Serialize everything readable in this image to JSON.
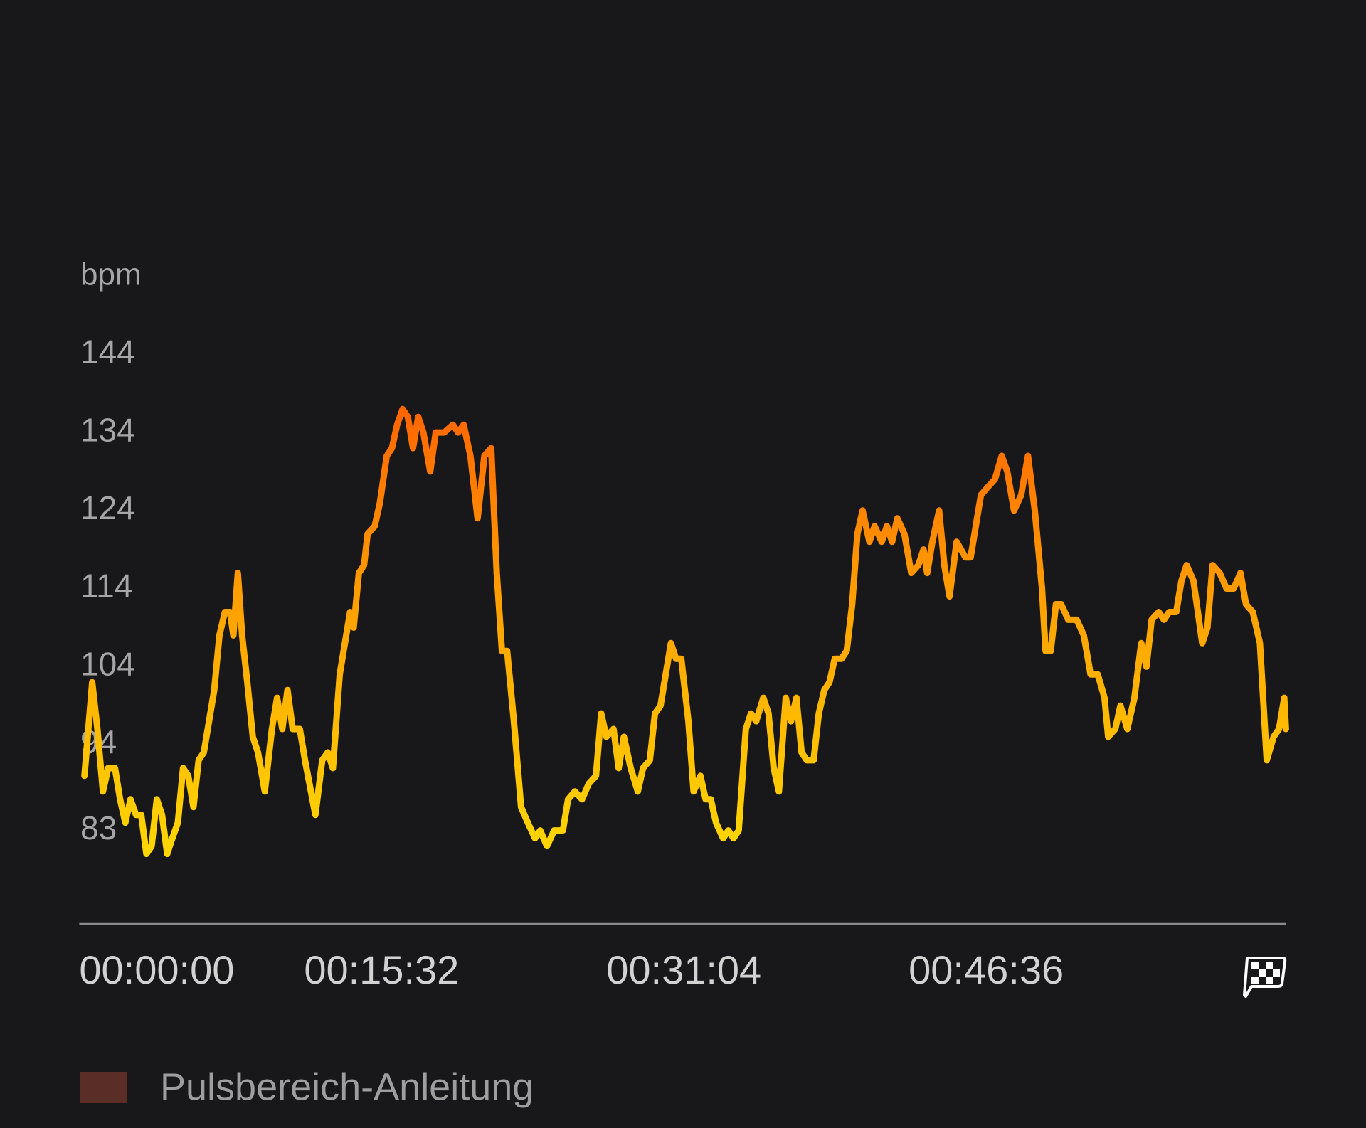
{
  "chart_data": {
    "type": "line",
    "y_label": "bpm",
    "x": [
      16,
      40,
      56,
      73,
      89,
      110,
      126,
      142,
      158,
      175,
      191,
      207,
      223,
      239,
      255,
      271,
      287,
      304,
      320,
      336,
      352,
      368,
      384,
      400,
      416,
      432,
      449,
      465,
      475,
      489,
      502,
      518,
      535,
      551,
      572,
      594,
      610,
      626,
      642,
      658,
      680,
      696,
      728,
      749,
      766,
      782,
      803,
      819,
      835,
      846,
      862,
      878,
      889,
      911,
      927,
      948,
      964,
      980,
      997,
      1013,
      1029,
      1045,
      1061,
      1082,
      1099,
      1125,
      1152,
      1168,
      1185,
      1206,
      1228,
      1249,
      1270,
      1287,
      1303,
      1319,
      1340,
      1362,
      1383,
      1405,
      1421,
      1442,
      1464,
      1491,
      1507,
      1528,
      1550,
      1571,
      1593,
      1609,
      1625,
      1647,
      1663,
      1679,
      1700,
      1722,
      1738,
      1759,
      1775,
      1792,
      1808,
      1824,
      1840,
      1856,
      1878,
      1894,
      1915,
      1931,
      1947,
      1963,
      1985,
      2001,
      2017,
      2033,
      2055,
      2071,
      2087,
      2109,
      2125,
      2141,
      2157,
      2178,
      2194,
      2211,
      2227,
      2243,
      2264,
      2280,
      2297,
      2313,
      2329,
      2350,
      2366,
      2383,
      2399,
      2415,
      2436,
      2452,
      2474,
      2490,
      2506,
      2522,
      2544,
      2565,
      2587,
      2603,
      2614,
      2630,
      2651,
      2667,
      2683,
      2705,
      2732,
      2748,
      2764,
      2780,
      2801,
      2823,
      2844,
      2861,
      2882,
      2904,
      2925,
      2946,
      2968,
      2979,
      2995,
      3011,
      3027,
      3049,
      3075,
      3097,
      3118,
      3140,
      3161,
      3172,
      3194,
      3210,
      3231,
      3253,
      3274,
      3290,
      3306,
      3328,
      3344,
      3360,
      3382,
      3398,
      3414,
      3435,
      3462,
      3478,
      3494,
      3516,
      3537,
      3559,
      3580,
      3597,
      3618,
      3640,
      3661,
      3682,
      3699,
      3715,
      3720
    ],
    "values": [
      90,
      102,
      96,
      88,
      91,
      91,
      87,
      84,
      87,
      85,
      85,
      80,
      81,
      87,
      85,
      80,
      82,
      84,
      91,
      90,
      86,
      92,
      93,
      97,
      101,
      108,
      111,
      111,
      108,
      116,
      108,
      102,
      95,
      93,
      88,
      96,
      100,
      96,
      101,
      96,
      96,
      92,
      85,
      92,
      93,
      91,
      103,
      107,
      111,
      109,
      116,
      117,
      121,
      122,
      125,
      131,
      132,
      135,
      137,
      136,
      132,
      136,
      134,
      129,
      134,
      134,
      135,
      134,
      135,
      131,
      123,
      131,
      132,
      116,
      106,
      106,
      97,
      86,
      84,
      82,
      83,
      81,
      83,
      83,
      87,
      88,
      87,
      89,
      90,
      98,
      95,
      96,
      91,
      95,
      91,
      88,
      91,
      92,
      98,
      99,
      103,
      107,
      105,
      105,
      97,
      88,
      90,
      87,
      87,
      84,
      82,
      83,
      82,
      83,
      96,
      98,
      97,
      100,
      98,
      91,
      88,
      100,
      97,
      100,
      93,
      92,
      92,
      98,
      101,
      102,
      105,
      105,
      106,
      112,
      121,
      124,
      120,
      122,
      120,
      122,
      120,
      123,
      121,
      116,
      117,
      119,
      116,
      120,
      124,
      117,
      113,
      120,
      118,
      118,
      122,
      126,
      127,
      128,
      131,
      129,
      124,
      126,
      131,
      124,
      114,
      106,
      106,
      112,
      112,
      110,
      110,
      108,
      103,
      103,
      100,
      95,
      96,
      99,
      96,
      100,
      107,
      104,
      110,
      111,
      110,
      111,
      111,
      115,
      117,
      115,
      107,
      109,
      117,
      116,
      114,
      114,
      116,
      112,
      111,
      107,
      92,
      95,
      96,
      100,
      96
    ],
    "line_colors": [
      "#ffe600",
      "#ffa000",
      "#ff3d00"
    ],
    "xlim": [
      0,
      3720
    ],
    "xticks": [
      {
        "value": 0,
        "label": "00:00:00"
      },
      {
        "value": 932,
        "label": "00:15:32"
      },
      {
        "value": 1864,
        "label": "00:31:04"
      },
      {
        "value": 2796,
        "label": "00:46:36"
      }
    ],
    "ylim": [
      71,
      154
    ],
    "yticks": [
      83,
      94,
      104,
      114,
      124,
      134,
      144
    ],
    "grid": false,
    "axis_color": "#8a8a8a",
    "legend_label": "Pulsbereich-Anleitung",
    "legend_color": "#5a2e27"
  }
}
